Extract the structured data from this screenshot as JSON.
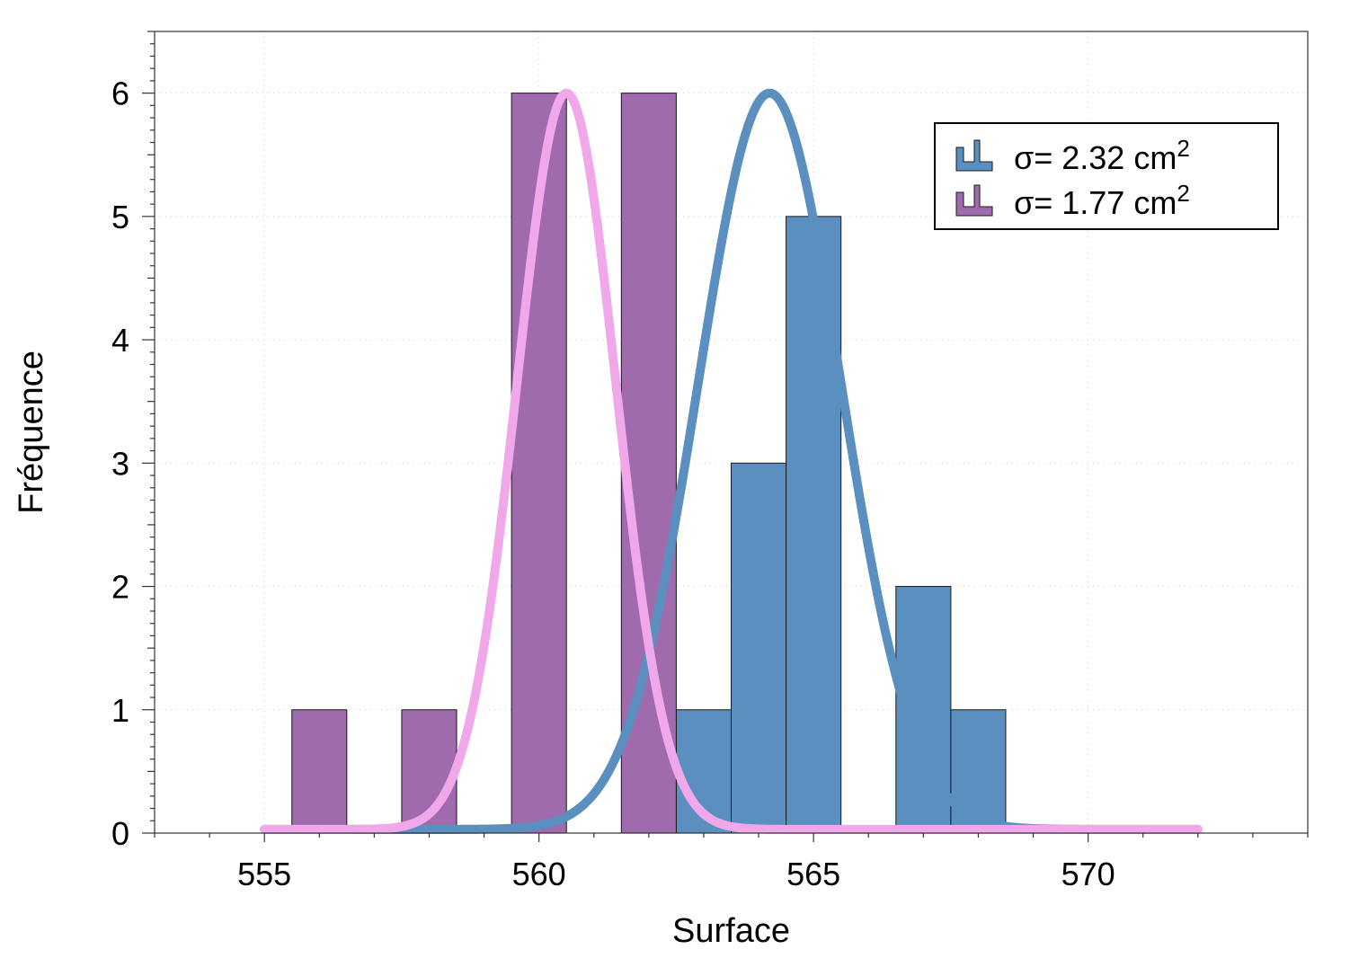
{
  "chart_data": {
    "type": "bar",
    "xlabel": "Surface",
    "ylabel": "Fréquence",
    "xlim": [
      553,
      574
    ],
    "ylim": [
      0,
      6.5
    ],
    "xticks": [
      555,
      560,
      565,
      570
    ],
    "yticks": [
      0,
      1,
      2,
      3,
      4,
      5,
      6
    ],
    "grid": true,
    "legend_position": "top-right",
    "bin_width": 1,
    "series": [
      {
        "name": "σ= 2.32 cm",
        "superscript": "2",
        "color": "#5a8fbf",
        "bins": [
          {
            "x": 563,
            "value": 1
          },
          {
            "x": 564,
            "value": 3
          },
          {
            "x": 565,
            "value": 5
          },
          {
            "x": 567,
            "value": 2
          },
          {
            "x": 568,
            "value": 1
          }
        ],
        "fit": {
          "color": "#5a8fbf",
          "mean": 564.2,
          "sigma": 1.3,
          "peak": 6,
          "baseline": 0.03,
          "x_range": [
            555,
            572
          ]
        }
      },
      {
        "name": "σ= 1.77 cm",
        "superscript": "2",
        "color": "#9f6bad",
        "bins": [
          {
            "x": 556,
            "value": 1
          },
          {
            "x": 558,
            "value": 1
          },
          {
            "x": 560,
            "value": 6
          },
          {
            "x": 562,
            "value": 6
          }
        ],
        "fit": {
          "color": "#f0a8ea",
          "mean": 560.5,
          "sigma": 0.9,
          "peak": 6,
          "baseline": 0.03,
          "x_range": [
            555,
            572
          ]
        }
      }
    ]
  }
}
